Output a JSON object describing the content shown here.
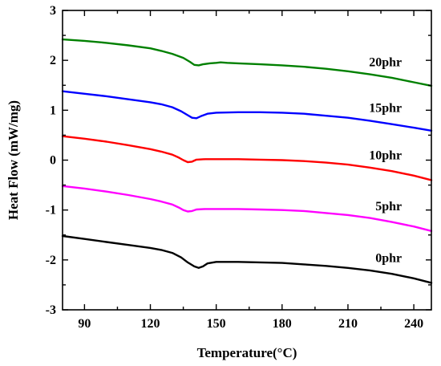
{
  "chart_data": {
    "type": "line",
    "title": "",
    "xlabel": "Temperature(°C)",
    "ylabel": "Heat Flow (mW/mg)",
    "xlim": [
      80,
      248
    ],
    "ylim": [
      -3,
      3
    ],
    "xticks": [
      90,
      120,
      150,
      180,
      210,
      240
    ],
    "yticks": [
      -3,
      -2,
      -1,
      0,
      1,
      2,
      3
    ],
    "grid": false,
    "legend": "none",
    "series": [
      {
        "name": "0phr",
        "color": "#000000",
        "x": [
          80,
          90,
          100,
          110,
          120,
          125,
          130,
          134,
          137,
          140,
          142,
          144,
          146,
          150,
          160,
          170,
          180,
          190,
          200,
          210,
          220,
          230,
          240,
          248
        ],
        "y": [
          -1.52,
          -1.58,
          -1.64,
          -1.7,
          -1.76,
          -1.8,
          -1.86,
          -1.95,
          -2.05,
          -2.13,
          -2.16,
          -2.13,
          -2.07,
          -2.04,
          -2.04,
          -2.05,
          -2.06,
          -2.09,
          -2.12,
          -2.16,
          -2.21,
          -2.28,
          -2.37,
          -2.46
        ]
      },
      {
        "name": "5phr",
        "color": "#ff00ff",
        "x": [
          80,
          90,
          100,
          110,
          120,
          125,
          130,
          133,
          135,
          137,
          139,
          141,
          145,
          150,
          160,
          170,
          180,
          190,
          200,
          210,
          220,
          230,
          240,
          248
        ],
        "y": [
          -0.52,
          -0.57,
          -0.63,
          -0.7,
          -0.78,
          -0.83,
          -0.89,
          -0.95,
          -1.0,
          -1.03,
          -1.02,
          -0.99,
          -0.98,
          -0.98,
          -0.98,
          -0.99,
          -1.0,
          -1.02,
          -1.06,
          -1.1,
          -1.16,
          -1.24,
          -1.33,
          -1.42
        ]
      },
      {
        "name": "10phr",
        "color": "#ff0000",
        "x": [
          80,
          90,
          100,
          110,
          120,
          125,
          130,
          133,
          135,
          137,
          139,
          141,
          145,
          150,
          160,
          170,
          180,
          190,
          200,
          210,
          220,
          230,
          240,
          248
        ],
        "y": [
          0.48,
          0.43,
          0.37,
          0.3,
          0.22,
          0.17,
          0.11,
          0.05,
          0.0,
          -0.04,
          -0.03,
          0.01,
          0.02,
          0.02,
          0.02,
          0.01,
          0.0,
          -0.02,
          -0.05,
          -0.09,
          -0.15,
          -0.22,
          -0.31,
          -0.4
        ]
      },
      {
        "name": "15phr",
        "color": "#0000ff",
        "x": [
          80,
          90,
          100,
          110,
          120,
          125,
          130,
          134,
          137,
          139,
          141,
          143,
          146,
          150,
          160,
          170,
          180,
          190,
          200,
          210,
          220,
          230,
          240,
          248
        ],
        "y": [
          1.38,
          1.33,
          1.28,
          1.22,
          1.16,
          1.12,
          1.06,
          0.98,
          0.9,
          0.85,
          0.84,
          0.88,
          0.93,
          0.95,
          0.96,
          0.96,
          0.95,
          0.93,
          0.89,
          0.85,
          0.79,
          0.72,
          0.65,
          0.59
        ]
      },
      {
        "name": "20phr",
        "color": "#008000",
        "x": [
          80,
          90,
          100,
          110,
          120,
          125,
          130,
          135,
          138,
          140,
          142,
          144,
          147,
          150,
          152,
          155,
          160,
          170,
          180,
          190,
          200,
          210,
          220,
          230,
          240,
          248
        ],
        "y": [
          2.42,
          2.39,
          2.35,
          2.3,
          2.24,
          2.19,
          2.13,
          2.05,
          1.97,
          1.91,
          1.9,
          1.92,
          1.94,
          1.95,
          1.96,
          1.95,
          1.94,
          1.92,
          1.9,
          1.87,
          1.83,
          1.78,
          1.72,
          1.65,
          1.56,
          1.49
        ]
      }
    ]
  }
}
